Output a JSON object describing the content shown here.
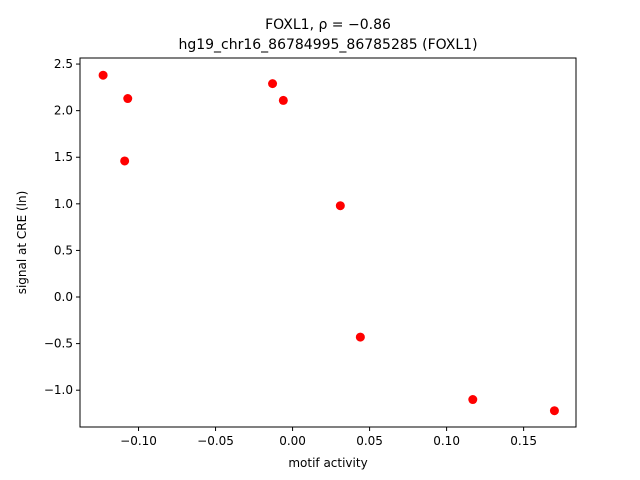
{
  "chart_data": {
    "type": "scatter",
    "title_line1": "FOXL1, ρ = −0.86",
    "title_line2": "hg19_chr16_86784995_86785285 (FOXL1)",
    "xlabel": "motif activity",
    "ylabel": "signal at CRE (ln)",
    "xlim": [
      -0.138,
      0.184
    ],
    "ylim": [
      -1.395,
      2.565
    ],
    "xticks": [
      -0.1,
      -0.05,
      0.0,
      0.05,
      0.1,
      0.15
    ],
    "xtick_labels": [
      "−0.10",
      "−0.05",
      "0.00",
      "0.05",
      "0.10",
      "0.15"
    ],
    "yticks": [
      -1.0,
      -0.5,
      0.0,
      0.5,
      1.0,
      1.5,
      2.0,
      2.5
    ],
    "ytick_labels": [
      "−1.0",
      "−0.5",
      "0.0",
      "0.5",
      "1.0",
      "1.5",
      "2.0",
      "2.5"
    ],
    "grid": false,
    "marker_color": "#ff0000",
    "points": [
      {
        "x": -0.123,
        "y": 2.38
      },
      {
        "x": -0.107,
        "y": 2.13
      },
      {
        "x": -0.109,
        "y": 1.46
      },
      {
        "x": -0.013,
        "y": 2.29
      },
      {
        "x": -0.006,
        "y": 2.11
      },
      {
        "x": 0.031,
        "y": 0.98
      },
      {
        "x": 0.044,
        "y": -0.43
      },
      {
        "x": 0.117,
        "y": -1.1
      },
      {
        "x": 0.17,
        "y": -1.22
      }
    ]
  }
}
